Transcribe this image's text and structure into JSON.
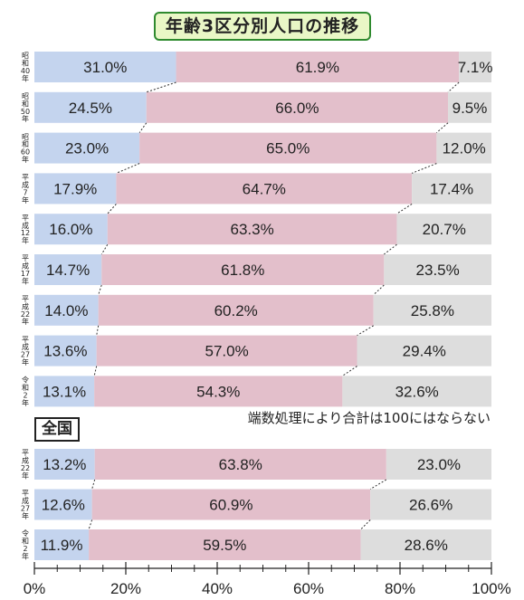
{
  "title": "年齢3区分別人口の推移",
  "national_label": "全国",
  "note": "端数処理により合計は100にはならない",
  "colors": {
    "young": "#c4d4ee",
    "working": "#e3bfcb",
    "elderly": "#dddddd"
  },
  "chart_data": [
    {
      "type": "bar",
      "stacked": true,
      "orientation": "horizontal",
      "categories": [
        "昭和40年",
        "昭和50年",
        "昭和60年",
        "平成7年",
        "平成12年",
        "平成17年",
        "平成22年",
        "平成27年",
        "令和2年"
      ],
      "series": [
        {
          "values": [
            31.0,
            24.5,
            23.0,
            17.9,
            16.0,
            14.7,
            14.0,
            13.6,
            13.1
          ],
          "labels": [
            "31.0%",
            "24.5%",
            "23.0%",
            "17.9%",
            "16.0%",
            "14.7%",
            "14.0%",
            "13.6%",
            "13.1%"
          ]
        },
        {
          "values": [
            61.9,
            66.0,
            65.0,
            64.7,
            63.3,
            61.8,
            60.2,
            57.0,
            54.3
          ],
          "labels": [
            "61.9%",
            "66.0%",
            "65.0%",
            "64.7%",
            "63.3%",
            "61.8%",
            "60.2%",
            "57.0%",
            "54.3%"
          ]
        },
        {
          "values": [
            7.1,
            9.5,
            12.0,
            17.4,
            20.7,
            23.5,
            25.8,
            29.4,
            32.6
          ],
          "labels": [
            "7.1%",
            "9.5%",
            "12.0%",
            "17.4%",
            "20.7%",
            "23.5%",
            "25.8%",
            "29.4%",
            "32.6%"
          ]
        }
      ]
    },
    {
      "type": "bar",
      "stacked": true,
      "orientation": "horizontal",
      "categories": [
        "平成22年",
        "平成27年",
        "令和2年"
      ],
      "series": [
        {
          "values": [
            13.2,
            12.6,
            11.9
          ],
          "labels": [
            "13.2%",
            "12.6%",
            "11.9%"
          ]
        },
        {
          "values": [
            63.8,
            60.9,
            59.5
          ],
          "labels": [
            "63.8%",
            "60.9%",
            "59.5%"
          ]
        },
        {
          "values": [
            23.0,
            26.6,
            28.6
          ],
          "labels": [
            "23.0%",
            "26.6%",
            "28.6%"
          ]
        }
      ]
    }
  ],
  "x_axis": {
    "xlim": [
      0,
      100
    ],
    "ticks": [
      "0%",
      "20%",
      "40%",
      "60%",
      "80%",
      "100%"
    ]
  }
}
